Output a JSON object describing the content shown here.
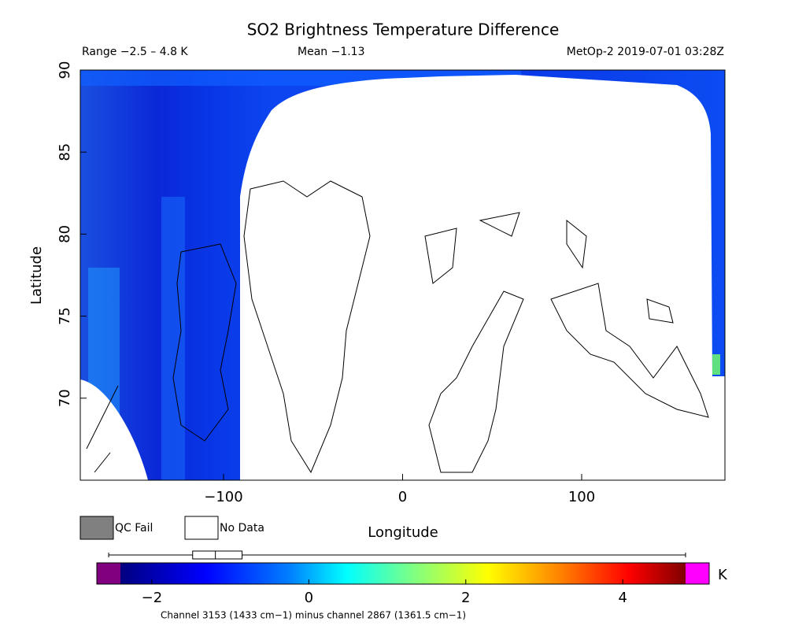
{
  "header": {
    "title": "SO2 Brightness Temperature Difference",
    "range_label": "Range −2.5 – 4.8 K",
    "mean_label": "Mean −1.13",
    "satellite_label": "MetOp-2 2019-07-01 03:28Z"
  },
  "chart_data": {
    "type": "heatmap",
    "xlabel": "Longitude",
    "ylabel": "Latitude",
    "xlim": [
      -180,
      180
    ],
    "ylim": [
      65,
      90
    ],
    "xticks": [
      {
        "value": -100,
        "label": "−100"
      },
      0,
      100
    ],
    "yticks": [
      70,
      75,
      80,
      85,
      90
    ]
  },
  "legend": {
    "qc_fail": "QC Fail",
    "no_data": "No Data"
  },
  "colorbar": {
    "lim": [
      -2.4,
      4.8
    ],
    "ticks": [
      {
        "value": -2,
        "label": "−2"
      },
      0,
      2,
      4
    ],
    "unit": "K",
    "caption": "Channel 3153 (1433 cm−1) minus channel 2867 (1361.5 cm−1)",
    "boxplot": {
      "min": -2.55,
      "q1": -1.48,
      "median": -1.19,
      "q3": -0.85,
      "max": 4.8
    }
  }
}
